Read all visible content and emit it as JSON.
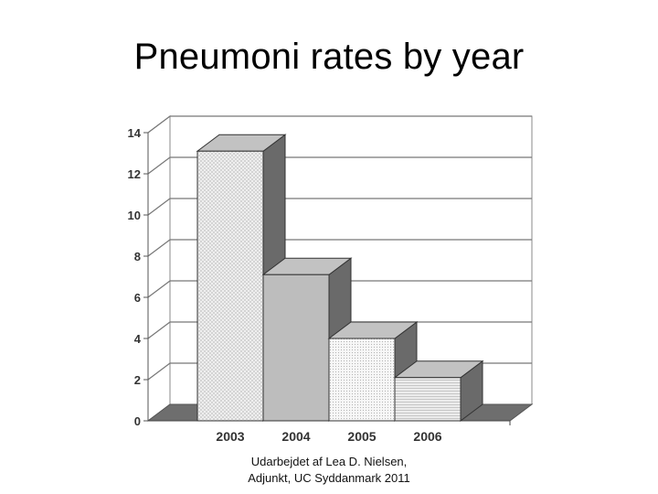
{
  "slide": {
    "title": "Pneumoni rates by year",
    "credit_line1": "Udarbejdet af Lea D. Nielsen,",
    "credit_line2": "Adjunkt, UC Syddanmark 2011"
  },
  "chart_data": {
    "type": "bar",
    "style": "3d",
    "title": "Pneumoni rates by year",
    "xlabel": "",
    "ylabel": "",
    "categories": [
      "2003",
      "2004",
      "2005",
      "2006"
    ],
    "values": [
      13.1,
      7.1,
      4.0,
      2.1
    ],
    "ylim": [
      0,
      14
    ],
    "yticks": [
      0,
      2,
      4,
      6,
      8,
      10,
      12,
      14
    ],
    "grid": true,
    "legend": "none",
    "bar_colors": [
      "#eeeeee",
      "#bdbdbd",
      "#f3f3f3",
      "#e2e2e2"
    ],
    "bar_patterns": [
      "crosshatch",
      "solid",
      "dots",
      "horizontal-lines"
    ]
  }
}
